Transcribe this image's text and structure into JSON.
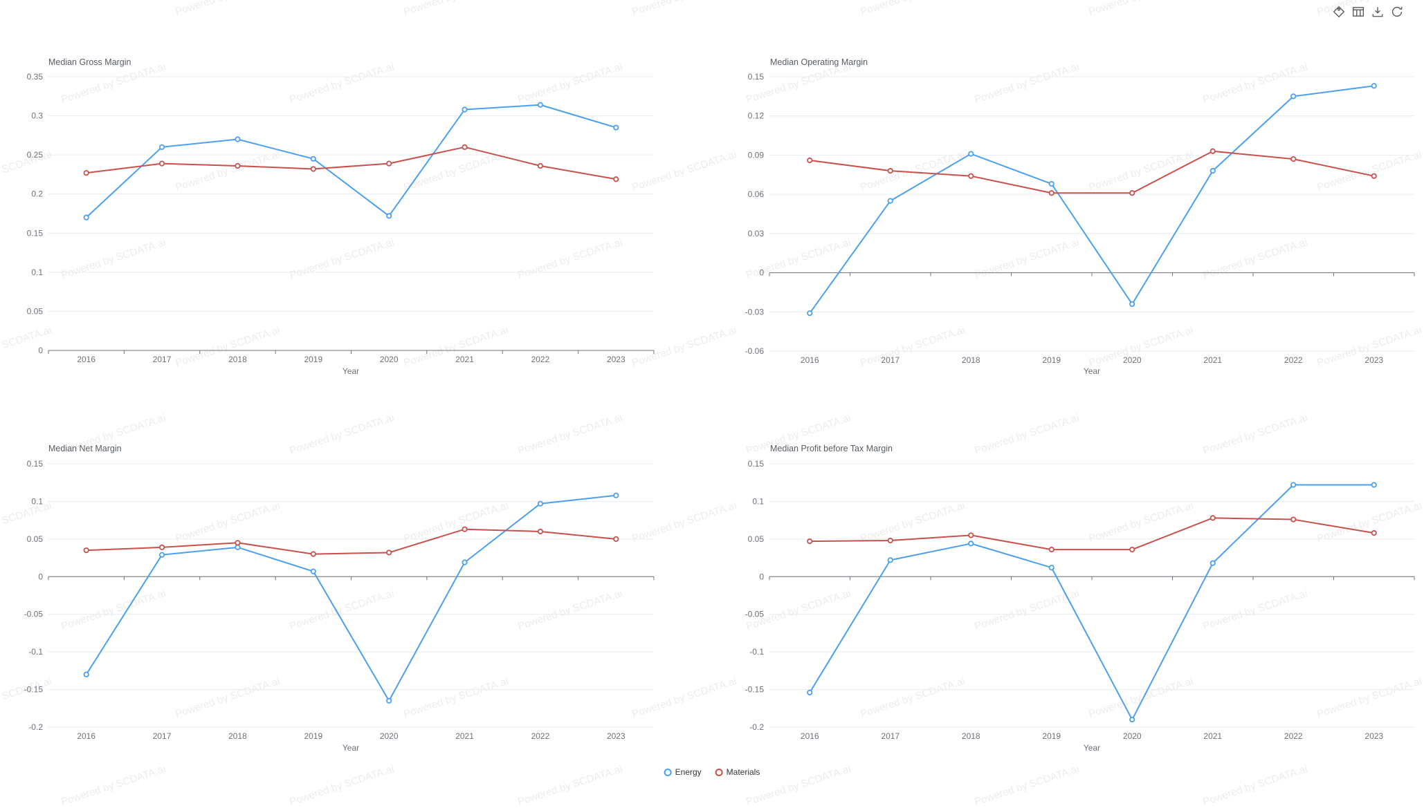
{
  "watermark": {
    "text": "Powered by SCDATA.ai"
  },
  "toolbar": {
    "icons": [
      "tag-icon",
      "data-view-icon",
      "download-icon",
      "refresh-icon"
    ]
  },
  "years": [
    "2016",
    "2017",
    "2018",
    "2019",
    "2020",
    "2021",
    "2022",
    "2023"
  ],
  "legend": {
    "position": "bottom-center",
    "items": [
      {
        "label": "Energy",
        "color": "#4A9FF0"
      },
      {
        "label": "Materials",
        "color": "#C8504B"
      }
    ]
  },
  "colors": {
    "energy": "#4A9FF0",
    "materials": "#C8504B",
    "grid": "#E6ECF4",
    "axis": "#6E7079",
    "tick_text": "#6E7079",
    "title_text": "#575C64"
  },
  "chart_data": [
    {
      "type": "line",
      "title": "Median Gross Margin",
      "xlabel": "Year",
      "categories": [
        "2016",
        "2017",
        "2018",
        "2019",
        "2020",
        "2021",
        "2022",
        "2023"
      ],
      "ylim": [
        0,
        0.35
      ],
      "yticks": [
        0,
        0.05,
        0.1,
        0.15,
        0.2,
        0.25,
        0.3,
        0.35
      ],
      "grid": true,
      "legend_position": "bottom",
      "series": [
        {
          "name": "Energy",
          "color": "#4A9FF0",
          "values": [
            0.17,
            0.26,
            0.27,
            0.245,
            0.172,
            0.308,
            0.314,
            0.285
          ]
        },
        {
          "name": "Materials",
          "color": "#C8504B",
          "values": [
            0.227,
            0.239,
            0.236,
            0.232,
            0.239,
            0.26,
            0.236,
            0.219
          ]
        }
      ]
    },
    {
      "type": "line",
      "title": "Median Operating Margin",
      "xlabel": "Year",
      "categories": [
        "2016",
        "2017",
        "2018",
        "2019",
        "2020",
        "2021",
        "2022",
        "2023"
      ],
      "ylim": [
        -0.06,
        0.15
      ],
      "yticks": [
        -0.06,
        -0.03,
        0,
        0.03,
        0.06,
        0.09,
        0.12,
        0.15
      ],
      "grid": true,
      "legend_position": "bottom",
      "series": [
        {
          "name": "Energy",
          "color": "#4A9FF0",
          "values": [
            -0.031,
            0.055,
            0.091,
            0.068,
            -0.024,
            0.078,
            0.135,
            0.143
          ]
        },
        {
          "name": "Materials",
          "color": "#C8504B",
          "values": [
            0.086,
            0.078,
            0.074,
            0.061,
            0.061,
            0.093,
            0.087,
            0.074
          ]
        }
      ]
    },
    {
      "type": "line",
      "title": "Median Net Margin",
      "xlabel": "Year",
      "categories": [
        "2016",
        "2017",
        "2018",
        "2019",
        "2020",
        "2021",
        "2022",
        "2023"
      ],
      "ylim": [
        -0.2,
        0.15
      ],
      "yticks": [
        -0.2,
        -0.15,
        -0.1,
        -0.05,
        0,
        0.05,
        0.1,
        0.15
      ],
      "grid": true,
      "legend_position": "bottom",
      "series": [
        {
          "name": "Energy",
          "color": "#4A9FF0",
          "values": [
            -0.13,
            0.029,
            0.039,
            0.007,
            -0.165,
            0.019,
            0.097,
            0.108
          ]
        },
        {
          "name": "Materials",
          "color": "#C8504B",
          "values": [
            0.035,
            0.039,
            0.045,
            0.03,
            0.032,
            0.063,
            0.06,
            0.05
          ]
        }
      ]
    },
    {
      "type": "line",
      "title": "Median Profit before Tax Margin",
      "xlabel": "Year",
      "categories": [
        "2016",
        "2017",
        "2018",
        "2019",
        "2020",
        "2021",
        "2022",
        "2023"
      ],
      "ylim": [
        -0.2,
        0.15
      ],
      "yticks": [
        -0.2,
        -0.15,
        -0.1,
        -0.05,
        0,
        0.05,
        0.1,
        0.15
      ],
      "grid": true,
      "legend_position": "bottom",
      "series": [
        {
          "name": "Energy",
          "color": "#4A9FF0",
          "values": [
            -0.154,
            0.022,
            0.044,
            0.012,
            -0.19,
            0.018,
            0.122,
            0.122
          ]
        },
        {
          "name": "Materials",
          "color": "#C8504B",
          "values": [
            0.047,
            0.048,
            0.055,
            0.036,
            0.036,
            0.078,
            0.076,
            0.058
          ]
        }
      ]
    }
  ]
}
